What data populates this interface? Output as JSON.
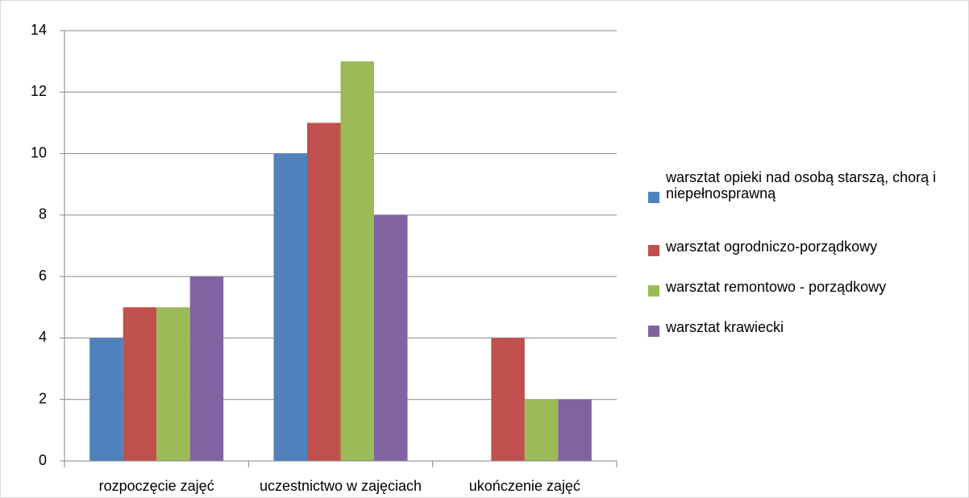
{
  "chart_data": {
    "type": "bar",
    "categories": [
      "rozpoczęcie zajęć",
      "uczestnictwo w zajęciach",
      "ukończenie zajęć"
    ],
    "series": [
      {
        "name": "warsztat opieki nad osobą starszą, chorą i niepełnosprawną",
        "color": "#4f81bd",
        "values": [
          4,
          10,
          0
        ]
      },
      {
        "name": "warsztat ogrodniczo-porządkowy",
        "color": "#c0504d",
        "values": [
          5,
          11,
          4
        ]
      },
      {
        "name": "warsztat remontowo - porządkowy",
        "color": "#9bbb59",
        "values": [
          5,
          13,
          2
        ]
      },
      {
        "name": "warsztat krawiecki",
        "color": "#8064a2",
        "values": [
          6,
          8,
          2
        ]
      }
    ],
    "ylim": [
      0,
      14
    ],
    "yticks": [
      0,
      2,
      4,
      6,
      8,
      10,
      12,
      14
    ],
    "grid": true,
    "legend": "right"
  }
}
